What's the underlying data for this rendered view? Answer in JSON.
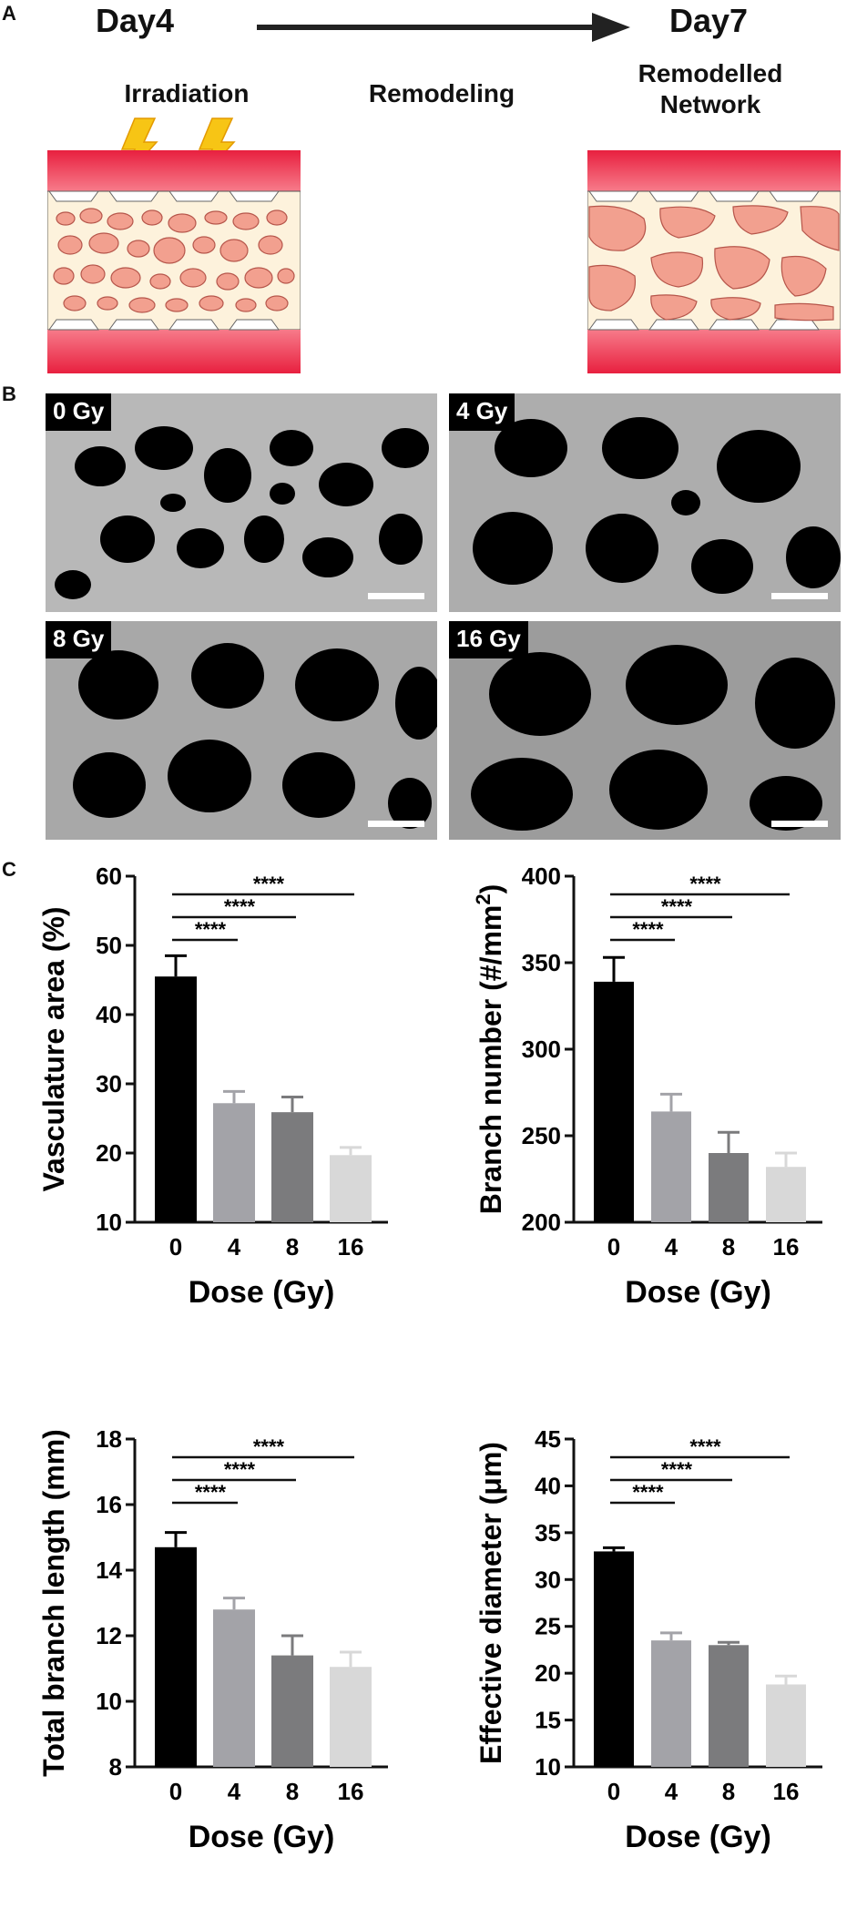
{
  "panel_a": {
    "letter": "A",
    "day_start": "Day4",
    "day_end": "Day7",
    "stage_left": "Irradiation",
    "stage_mid": "Remodeling",
    "stage_right_line1": "Remodelled",
    "stage_right_line2": "Network",
    "icons": [
      "lightning-icon",
      "lightning-icon",
      "arrow-right-icon"
    ],
    "colors": {
      "channel": "#ee3a4f",
      "tissue": "#f3a594",
      "gel": "#fdf2dc"
    }
  },
  "panel_b": {
    "letter": "B",
    "images": [
      {
        "label": "0 Gy"
      },
      {
        "label": "4 Gy"
      },
      {
        "label": "8 Gy"
      },
      {
        "label": "16 Gy"
      }
    ]
  },
  "panel_c": {
    "letter": "C"
  },
  "chart_data": [
    {
      "type": "bar",
      "categories": [
        "0",
        "4",
        "8",
        "16"
      ],
      "values": [
        45.5,
        27.2,
        25.9,
        19.7
      ],
      "errors": [
        3.0,
        1.7,
        2.2,
        1.1
      ],
      "xlabel": "Dose (Gy)",
      "ylabel": "Vasculature area (%)",
      "ylim": [
        10,
        60
      ],
      "yticks": [
        "10",
        "20",
        "30",
        "40",
        "50",
        "60"
      ],
      "significance": [
        "****",
        "****",
        "****"
      ],
      "bar_colors": [
        "#000000",
        "#a3a3a8",
        "#7b7b7d",
        "#d8d8d8"
      ]
    },
    {
      "type": "bar",
      "categories": [
        "0",
        "4",
        "8",
        "16"
      ],
      "values": [
        339,
        264,
        240,
        232
      ],
      "errors": [
        14,
        10,
        12,
        8
      ],
      "xlabel": "Dose (Gy)",
      "ylabel": "Branch number (#/mm",
      "ylabel_sup": "2",
      "ylabel_end": ")",
      "ylim": [
        200,
        400
      ],
      "yticks": [
        "200",
        "250",
        "300",
        "350",
        "400"
      ],
      "significance": [
        "****",
        "****",
        "****"
      ],
      "bar_colors": [
        "#000000",
        "#a3a3a8",
        "#7b7b7d",
        "#d8d8d8"
      ]
    },
    {
      "type": "bar",
      "categories": [
        "0",
        "4",
        "8",
        "16"
      ],
      "values": [
        14.7,
        12.8,
        11.4,
        11.05
      ],
      "errors": [
        0.45,
        0.35,
        0.6,
        0.45
      ],
      "xlabel": "Dose (Gy)",
      "ylabel": "Total branch length (mm)",
      "ylim": [
        8,
        18
      ],
      "yticks": [
        "8",
        "10",
        "12",
        "14",
        "16",
        "18"
      ],
      "significance": [
        "****",
        "****",
        "****"
      ],
      "bar_colors": [
        "#000000",
        "#a3a3a8",
        "#7b7b7d",
        "#d8d8d8"
      ]
    },
    {
      "type": "bar",
      "categories": [
        "0",
        "4",
        "8",
        "16"
      ],
      "values": [
        33.0,
        23.5,
        23.0,
        18.8
      ],
      "errors": [
        0.4,
        0.8,
        0.3,
        0.9
      ],
      "xlabel": "Dose (Gy)",
      "ylabel": "Effective diameter (μm)",
      "ylim": [
        10,
        45
      ],
      "yticks": [
        "10",
        "15",
        "20",
        "25",
        "30",
        "35",
        "40",
        "45"
      ],
      "significance": [
        "****",
        "****",
        "****"
      ],
      "bar_colors": [
        "#000000",
        "#a3a3a8",
        "#7b7b7d",
        "#d8d8d8"
      ]
    }
  ]
}
